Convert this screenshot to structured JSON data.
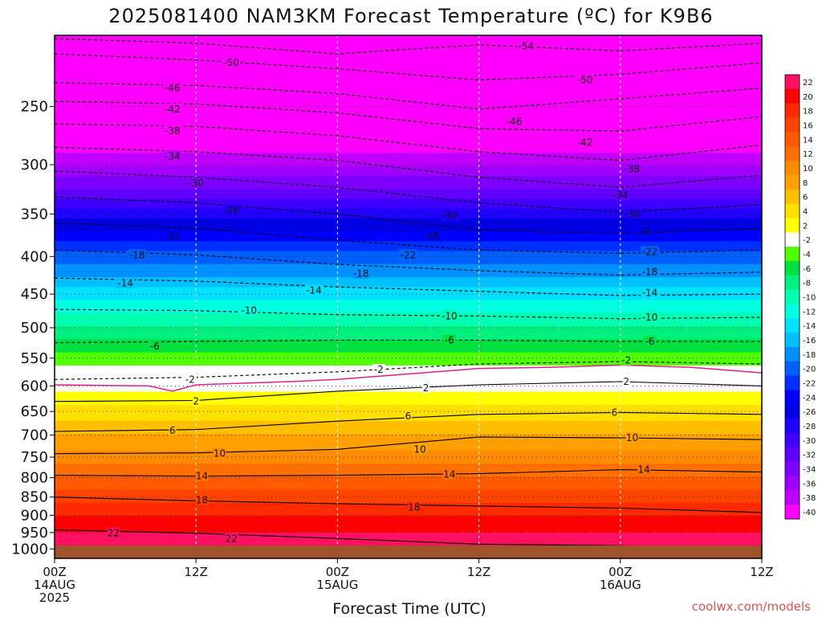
{
  "chart_data": {
    "type": "heatmap",
    "title": "2025081400 NAM3KM Forecast Temperature (ºC) for K9B6",
    "xlabel": "Forecast Time (UTC)",
    "ylabel": "",
    "credit": "coolwx.com/models",
    "y_ticks": [
      "250",
      "300",
      "350",
      "400",
      "450",
      "500",
      "550",
      "600",
      "650",
      "700",
      "750",
      "800",
      "850",
      "900",
      "950",
      "1000"
    ],
    "y_tick_values": [
      250,
      300,
      350,
      400,
      450,
      500,
      550,
      600,
      650,
      700,
      750,
      800,
      850,
      900,
      950,
      1000
    ],
    "y_scale": "log-pressure",
    "ylim": [
      200,
      1030
    ],
    "x_ticks": [
      {
        "hour": 0,
        "line1": "00Z",
        "line2": "14AUG",
        "line3": "2025"
      },
      {
        "hour": 12,
        "line1": "12Z",
        "line2": "",
        "line3": ""
      },
      {
        "hour": 24,
        "line1": "00Z",
        "line2": "15AUG",
        "line3": ""
      },
      {
        "hour": 36,
        "line1": "12Z",
        "line2": "",
        "line3": ""
      },
      {
        "hour": 48,
        "line1": "00Z",
        "line2": "16AUG",
        "line3": ""
      },
      {
        "hour": 60,
        "line1": "12Z",
        "line2": "",
        "line3": ""
      }
    ],
    "xlim": [
      0,
      60
    ],
    "colorbar_labels": [
      "22",
      "20",
      "18",
      "16",
      "14",
      "12",
      "10",
      "8",
      "6",
      "4",
      "2",
      "-2",
      "-4",
      "-6",
      "-8",
      "-10",
      "-12",
      "-14",
      "-16",
      "-18",
      "-20",
      "-22",
      "-24",
      "-26",
      "-28",
      "-30",
      "-32",
      "-34",
      "-36",
      "-38",
      "-40"
    ],
    "colorbar_colors": [
      "#ff1060",
      "#ff0000",
      "#ff2a00",
      "#ff4400",
      "#ff5a00",
      "#ff7000",
      "#ff8c00",
      "#ffa000",
      "#ffbe00",
      "#ffe000",
      "#ffff00",
      "#ffffff",
      "#50ff00",
      "#00e040",
      "#00f080",
      "#00ffb0",
      "#00ffe0",
      "#00e0ff",
      "#00c0ff",
      "#0090ff",
      "#0060ff",
      "#0030ff",
      "#0000ff",
      "#0000e0",
      "#2000ff",
      "#4000ff",
      "#6000ff",
      "#8000ff",
      "#a000ff",
      "#c000ff",
      "#ff00ff"
    ],
    "isotherm_profile": [
      {
        "pressure": 200,
        "temp": -58
      },
      {
        "pressure": 250,
        "temp": -46
      },
      {
        "pressure": 300,
        "temp": -36
      },
      {
        "pressure": 350,
        "temp": -27
      },
      {
        "pressure": 400,
        "temp": -19
      },
      {
        "pressure": 450,
        "temp": -13
      },
      {
        "pressure": 500,
        "temp": -8
      },
      {
        "pressure": 550,
        "temp": -3
      },
      {
        "pressure": 600,
        "temp": 1
      },
      {
        "pressure": 650,
        "temp": 5
      },
      {
        "pressure": 700,
        "temp": 8
      },
      {
        "pressure": 750,
        "temp": 11
      },
      {
        "pressure": 800,
        "temp": 14
      },
      {
        "pressure": 850,
        "temp": 17
      },
      {
        "pressure": 900,
        "temp": 20
      },
      {
        "pressure": 950,
        "temp": 22
      },
      {
        "pressure": 1000,
        "temp": 23
      }
    ],
    "contours": [
      {
        "label": "-54",
        "style": "dashed",
        "points": [
          [
            0,
            202
          ],
          [
            12,
            205
          ],
          [
            24,
            212
          ],
          [
            36,
            206
          ],
          [
            48,
            210
          ],
          [
            60,
            205
          ]
        ]
      },
      {
        "label": "-50",
        "style": "dashed",
        "points": [
          [
            0,
            212
          ],
          [
            12,
            216
          ],
          [
            24,
            222
          ],
          [
            36,
            230
          ],
          [
            48,
            226
          ],
          [
            60,
            218
          ]
        ]
      },
      {
        "label": "-46",
        "style": "dashed",
        "points": [
          [
            0,
            232
          ],
          [
            12,
            234
          ],
          [
            24,
            240
          ],
          [
            36,
            252
          ],
          [
            48,
            244
          ],
          [
            60,
            236
          ]
        ]
      },
      {
        "label": "-42",
        "style": "dashed",
        "points": [
          [
            0,
            246
          ],
          [
            12,
            248
          ],
          [
            24,
            255
          ],
          [
            36,
            268
          ],
          [
            48,
            270
          ],
          [
            60,
            258
          ]
        ]
      },
      {
        "label": "-38",
        "style": "dashed",
        "points": [
          [
            0,
            264
          ],
          [
            12,
            266
          ],
          [
            24,
            274
          ],
          [
            36,
            288
          ],
          [
            48,
            296
          ],
          [
            60,
            282
          ]
        ]
      },
      {
        "label": "-34",
        "style": "dashed",
        "points": [
          [
            0,
            284
          ],
          [
            12,
            288
          ],
          [
            24,
            296
          ],
          [
            36,
            312
          ],
          [
            48,
            322
          ],
          [
            60,
            310
          ]
        ]
      },
      {
        "label": "-30",
        "style": "dashed",
        "points": [
          [
            0,
            306
          ],
          [
            12,
            312
          ],
          [
            24,
            322
          ],
          [
            36,
            338
          ],
          [
            48,
            348
          ],
          [
            60,
            340
          ]
        ]
      },
      {
        "label": "-26",
        "style": "dashed",
        "points": [
          [
            0,
            332
          ],
          [
            12,
            338
          ],
          [
            24,
            350
          ],
          [
            36,
            368
          ],
          [
            48,
            372
          ],
          [
            60,
            366
          ]
        ]
      },
      {
        "label": "-22",
        "style": "dashed",
        "points": [
          [
            0,
            360
          ],
          [
            12,
            366
          ],
          [
            24,
            380
          ],
          [
            36,
            392
          ],
          [
            48,
            396
          ],
          [
            60,
            392
          ]
        ]
      },
      {
        "label": "-18",
        "style": "dashed",
        "points": [
          [
            0,
            392
          ],
          [
            12,
            398
          ],
          [
            24,
            410
          ],
          [
            36,
            418
          ],
          [
            48,
            424
          ],
          [
            60,
            420
          ]
        ]
      },
      {
        "label": "-14",
        "style": "dashed",
        "points": [
          [
            0,
            428
          ],
          [
            12,
            432
          ],
          [
            24,
            440
          ],
          [
            36,
            446
          ],
          [
            48,
            452
          ],
          [
            60,
            450
          ]
        ]
      },
      {
        "label": "-10",
        "style": "dashed",
        "points": [
          [
            0,
            472
          ],
          [
            12,
            474
          ],
          [
            24,
            480
          ],
          [
            36,
            482
          ],
          [
            48,
            486
          ],
          [
            60,
            484
          ]
        ]
      },
      {
        "label": "-6",
        "style": "dashed",
        "points": [
          [
            0,
            524
          ],
          [
            12,
            522
          ],
          [
            24,
            520
          ],
          [
            36,
            520
          ],
          [
            48,
            522
          ],
          [
            60,
            522
          ]
        ]
      },
      {
        "label": "-2",
        "style": "dashed",
        "points": [
          [
            0,
            588
          ],
          [
            12,
            584
          ],
          [
            24,
            574
          ],
          [
            36,
            560
          ],
          [
            48,
            556
          ],
          [
            60,
            560
          ]
        ]
      },
      {
        "label": "2",
        "style": "solid",
        "points": [
          [
            0,
            630
          ],
          [
            12,
            628
          ],
          [
            24,
            610
          ],
          [
            36,
            598
          ],
          [
            48,
            592
          ],
          [
            60,
            600
          ]
        ]
      },
      {
        "label": "6",
        "style": "solid",
        "points": [
          [
            0,
            692
          ],
          [
            12,
            688
          ],
          [
            24,
            670
          ],
          [
            36,
            656
          ],
          [
            48,
            652
          ],
          [
            60,
            656
          ]
        ]
      },
      {
        "label": "10",
        "style": "solid",
        "points": [
          [
            0,
            742
          ],
          [
            12,
            740
          ],
          [
            24,
            732
          ],
          [
            36,
            704
          ],
          [
            48,
            706
          ],
          [
            60,
            710
          ]
        ]
      },
      {
        "label": "14",
        "style": "solid",
        "points": [
          [
            0,
            794
          ],
          [
            12,
            796
          ],
          [
            24,
            794
          ],
          [
            36,
            790
          ],
          [
            48,
            780
          ],
          [
            60,
            786
          ]
        ]
      },
      {
        "label": "18",
        "style": "solid",
        "points": [
          [
            0,
            850
          ],
          [
            12,
            860
          ],
          [
            24,
            868
          ],
          [
            36,
            874
          ],
          [
            48,
            880
          ],
          [
            60,
            892
          ]
        ]
      },
      {
        "label": "22",
        "style": "solid",
        "points": [
          [
            0,
            942
          ],
          [
            12,
            952
          ],
          [
            24,
            968
          ],
          [
            36,
            985
          ],
          [
            48,
            990
          ],
          [
            60,
            996
          ]
        ]
      }
    ],
    "contour_labels": [
      {
        "text": "-54",
        "x": 40,
        "p": 207
      },
      {
        "text": "-50",
        "x": 15,
        "p": 218
      },
      {
        "text": "-50",
        "x": 45,
        "p": 230
      },
      {
        "text": "-46",
        "x": 10,
        "p": 236
      },
      {
        "text": "-46",
        "x": 39,
        "p": 262
      },
      {
        "text": "-42",
        "x": 10,
        "p": 252
      },
      {
        "text": "-42",
        "x": 45,
        "p": 280
      },
      {
        "text": "-38",
        "x": 10,
        "p": 270
      },
      {
        "text": "-38",
        "x": 49,
        "p": 304
      },
      {
        "text": "-34",
        "x": 10,
        "p": 292
      },
      {
        "text": "-34",
        "x": 48,
        "p": 330
      },
      {
        "text": "-30",
        "x": 12,
        "p": 318
      },
      {
        "text": "-30",
        "x": 33.5,
        "p": 352
      },
      {
        "text": "-30",
        "x": 49,
        "p": 350
      },
      {
        "text": "-26",
        "x": 15,
        "p": 346
      },
      {
        "text": "-26",
        "x": 32,
        "p": 375
      },
      {
        "text": "-26",
        "x": 50,
        "p": 370
      },
      {
        "text": "-22",
        "x": 10,
        "p": 375
      },
      {
        "text": "-22",
        "x": 30,
        "p": 398
      },
      {
        "text": "-22",
        "x": 50.5,
        "p": 394
      },
      {
        "text": "-18",
        "x": 7,
        "p": 398
      },
      {
        "text": "-18",
        "x": 26,
        "p": 422
      },
      {
        "text": "-18",
        "x": 50.5,
        "p": 420
      },
      {
        "text": "-14",
        "x": 6,
        "p": 435
      },
      {
        "text": "-14",
        "x": 22,
        "p": 445
      },
      {
        "text": "-14",
        "x": 50.5,
        "p": 448
      },
      {
        "text": "-10",
        "x": 16.5,
        "p": 474
      },
      {
        "text": "-10",
        "x": 33.5,
        "p": 482
      },
      {
        "text": "-10",
        "x": 50.5,
        "p": 484
      },
      {
        "text": "-6",
        "x": 8.5,
        "p": 530
      },
      {
        "text": "-6",
        "x": 33.5,
        "p": 520
      },
      {
        "text": "-6",
        "x": 50.5,
        "p": 522
      },
      {
        "text": "-2",
        "x": 11.5,
        "p": 588
      },
      {
        "text": "-2",
        "x": 27.5,
        "p": 570
      },
      {
        "text": "-2",
        "x": 48.5,
        "p": 554
      },
      {
        "text": "2",
        "x": 12,
        "p": 630
      },
      {
        "text": "2",
        "x": 31.5,
        "p": 604
      },
      {
        "text": "2",
        "x": 48.5,
        "p": 592
      },
      {
        "text": "6",
        "x": 10,
        "p": 690
      },
      {
        "text": "6",
        "x": 30,
        "p": 660
      },
      {
        "text": "6",
        "x": 47.5,
        "p": 652
      },
      {
        "text": "10",
        "x": 14,
        "p": 742
      },
      {
        "text": "10",
        "x": 31,
        "p": 732
      },
      {
        "text": "10",
        "x": 49,
        "p": 706
      },
      {
        "text": "14",
        "x": 12.5,
        "p": 796
      },
      {
        "text": "14",
        "x": 33.5,
        "p": 792
      },
      {
        "text": "14",
        "x": 50,
        "p": 780
      },
      {
        "text": "18",
        "x": 12.5,
        "p": 858
      },
      {
        "text": "18",
        "x": 30.5,
        "p": 878
      },
      {
        "text": "22",
        "x": 5,
        "p": 952
      },
      {
        "text": "22",
        "x": 15,
        "p": 968
      }
    ],
    "freezing_line": {
      "label": "0",
      "color": "#e0208a",
      "points": [
        [
          0,
          598
        ],
        [
          8,
          600
        ],
        [
          10,
          610
        ],
        [
          12,
          598
        ],
        [
          20,
          592
        ],
        [
          24,
          588
        ],
        [
          30,
          578
        ],
        [
          36,
          568
        ],
        [
          42,
          566
        ],
        [
          48,
          562
        ],
        [
          54,
          566
        ],
        [
          60,
          576
        ]
      ]
    },
    "grid": true,
    "legend": "colorbar-right"
  }
}
